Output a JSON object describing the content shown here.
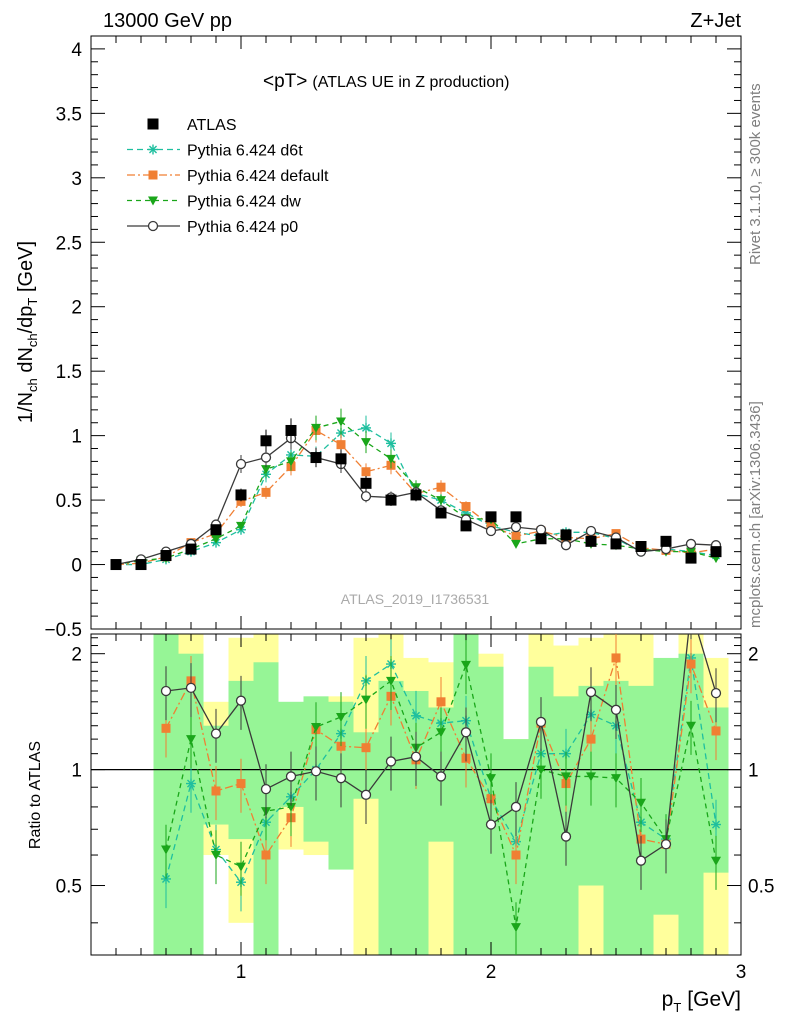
{
  "header": {
    "left": "13000 GeV pp",
    "right": "Z+Jet"
  },
  "side": {
    "version": "Rivet 3.1.10, ≥ 300k events",
    "source": "mcplots.cern.ch [arXiv:1306.3436]"
  },
  "chart_data": {
    "type": "line",
    "title": "<pT>",
    "subtitle": "(ATLAS UE in Z production)",
    "analysis": "ATLAS_2019_I1736531",
    "xlabel_main": "p",
    "xlabel_sub": "T",
    "xlabel_unit": "[GeV]",
    "ylabel": "1/N_ch dN_ch/dp_T [GeV]",
    "ratio_ylabel": "Ratio to ATLAS",
    "xlim": [
      0.4,
      3.0
    ],
    "ylim": [
      -0.5,
      4.1
    ],
    "ratio_ylim": [
      0.33,
      2.25
    ],
    "x_ticks": [
      1,
      2,
      3
    ],
    "y_ticks": [
      -0.5,
      0,
      0.5,
      1,
      1.5,
      2,
      2.5,
      3,
      3.5,
      4
    ],
    "y_tick_labels": [
      "−0.5",
      "0",
      "0.5",
      "1",
      "1.5",
      "2",
      "2.5",
      "3",
      "3.5",
      "4"
    ],
    "ratio_ticks": [
      0.5,
      1,
      2
    ],
    "grid": false,
    "legend_position": "top-left",
    "x": [
      0.5,
      0.6,
      0.7,
      0.8,
      0.9,
      1.0,
      1.1,
      1.2,
      1.3,
      1.4,
      1.5,
      1.6,
      1.7,
      1.8,
      1.9,
      2.0,
      2.1,
      2.2,
      2.3,
      2.4,
      2.5,
      2.6,
      2.7,
      2.8,
      2.9
    ],
    "series": [
      {
        "name": "ATLAS",
        "color": "#000000",
        "marker": "square",
        "values": [
          0.0,
          0.0,
          0.07,
          0.12,
          0.27,
          0.54,
          0.96,
          1.04,
          0.83,
          0.82,
          0.63,
          0.5,
          0.54,
          0.4,
          0.3,
          0.37,
          0.37,
          0.2,
          0.23,
          0.18,
          0.16,
          0.14,
          0.18,
          0.05,
          0.1
        ]
      },
      {
        "name": "Pythia 6.424 d6t",
        "color": "#1fbf9f",
        "marker": "star",
        "dash": "6,4",
        "values": [
          0.0,
          0.0,
          0.04,
          0.1,
          0.17,
          0.27,
          0.7,
          0.85,
          0.84,
          1.02,
          1.06,
          0.94,
          0.55,
          0.5,
          0.4,
          0.3,
          0.25,
          0.22,
          0.25,
          0.25,
          0.2,
          0.1,
          0.12,
          0.1,
          0.07
        ]
      },
      {
        "name": "Pythia 6.424 default",
        "color": "#f07f33",
        "marker": "square",
        "dash": "8,3,2,3",
        "values": [
          0.0,
          0.01,
          0.06,
          0.17,
          0.24,
          0.49,
          0.56,
          0.76,
          1.04,
          0.93,
          0.72,
          0.77,
          0.55,
          0.6,
          0.45,
          0.3,
          0.22,
          0.26,
          0.21,
          0.2,
          0.24,
          0.13,
          0.11,
          0.09,
          0.12
        ]
      },
      {
        "name": "Pythia 6.424 dw",
        "color": "#1aa61a",
        "marker": "triangle-down",
        "dash": "5,4",
        "values": [
          0.0,
          0.03,
          0.05,
          0.12,
          0.2,
          0.3,
          0.74,
          0.8,
          1.06,
          1.11,
          0.95,
          0.82,
          0.6,
          0.5,
          0.36,
          0.35,
          0.16,
          0.2,
          0.2,
          0.16,
          0.15,
          0.12,
          0.1,
          0.1,
          0.05
        ]
      },
      {
        "name": "Pythia 6.424 p0",
        "color": "#3a3a3a",
        "marker": "circle-open",
        "dash": "",
        "values": [
          0.0,
          0.04,
          0.1,
          0.16,
          0.31,
          0.78,
          0.83,
          0.98,
          0.83,
          0.78,
          0.53,
          0.52,
          0.56,
          0.42,
          0.35,
          0.26,
          0.29,
          0.27,
          0.15,
          0.26,
          0.21,
          0.1,
          0.12,
          0.16,
          0.15
        ]
      }
    ],
    "ratio_series": [
      {
        "name": "Pythia 6.424 d6t",
        "values": [
          null,
          null,
          0.52,
          0.92,
          0.62,
          0.51,
          0.73,
          0.85,
          1.0,
          1.24,
          1.7,
          1.88,
          1.38,
          1.32,
          1.34,
          0.84,
          0.65,
          1.1,
          1.1,
          1.39,
          1.3,
          0.73,
          0.66,
          1.95,
          0.72
        ]
      },
      {
        "name": "Pythia 6.424 default",
        "values": [
          null,
          null,
          1.28,
          1.7,
          0.88,
          0.92,
          0.6,
          0.75,
          1.27,
          1.15,
          1.14,
          1.55,
          1.06,
          1.5,
          1.07,
          0.84,
          0.6,
          1.32,
          0.92,
          1.2,
          1.95,
          0.66,
          0.64,
          1.88,
          1.26
        ]
      },
      {
        "name": "Pythia 6.424 dw",
        "values": [
          null,
          null,
          0.62,
          1.2,
          0.6,
          0.56,
          0.78,
          0.8,
          1.29,
          1.37,
          1.52,
          1.7,
          1.14,
          1.25,
          1.87,
          0.95,
          0.39,
          1.0,
          0.96,
          0.96,
          0.95,
          0.82,
          0.66,
          1.3,
          0.58
        ]
      },
      {
        "name": "Pythia 6.424 p0",
        "values": [
          null,
          null,
          1.6,
          1.63,
          1.24,
          1.51,
          0.89,
          0.96,
          0.99,
          0.95,
          0.86,
          1.05,
          1.08,
          0.96,
          1.25,
          0.72,
          0.8,
          1.33,
          0.67,
          1.59,
          1.43,
          0.58,
          0.64,
          2.6,
          1.58
        ]
      }
    ],
    "band_colors": {
      "inner": "#96f596",
      "outer": "#ffff9c"
    },
    "band_outer": [
      null,
      null,
      [
        0.33,
        2.2
      ],
      [
        0.33,
        2.25
      ],
      [
        0.6,
        1.5
      ],
      [
        0.4,
        2.2
      ],
      [
        0.33,
        2.25
      ],
      [
        0.62,
        1.35
      ],
      [
        0.6,
        1.5
      ],
      [
        0.6,
        1.55
      ],
      [
        0.33,
        2.2
      ],
      [
        0.33,
        2.25
      ],
      [
        0.5,
        1.95
      ],
      [
        0.33,
        1.9
      ],
      [
        0.33,
        2.2
      ],
      [
        0.5,
        2.0
      ],
      [
        0.6,
        1.2
      ],
      [
        0.33,
        2.25
      ],
      [
        0.6,
        2.1
      ],
      [
        0.33,
        2.2
      ],
      [
        0.33,
        2.25
      ],
      [
        0.65,
        2.25
      ],
      [
        0.33,
        1.7
      ],
      [
        0.4,
        2.25
      ],
      [
        0.33,
        1.95
      ]
    ],
    "band_inner": [
      null,
      null,
      [
        0.33,
        2.25
      ],
      [
        0.33,
        2.0
      ],
      [
        0.72,
        1.3
      ],
      [
        0.66,
        1.7
      ],
      [
        0.33,
        1.9
      ],
      [
        0.8,
        1.5
      ],
      [
        0.65,
        1.55
      ],
      [
        0.55,
        1.5
      ],
      [
        0.84,
        1.25
      ],
      [
        0.33,
        1.7
      ],
      [
        0.33,
        1.6
      ],
      [
        0.65,
        1.45
      ],
      [
        0.33,
        2.25
      ],
      [
        0.33,
        1.85
      ],
      [
        0.33,
        1.2
      ],
      [
        0.33,
        1.85
      ],
      [
        0.33,
        1.55
      ],
      [
        0.5,
        1.65
      ],
      [
        0.33,
        1.7
      ],
      [
        0.33,
        1.65
      ],
      [
        0.42,
        1.95
      ],
      [
        0.33,
        2.0
      ],
      [
        0.54,
        1.45
      ]
    ]
  }
}
